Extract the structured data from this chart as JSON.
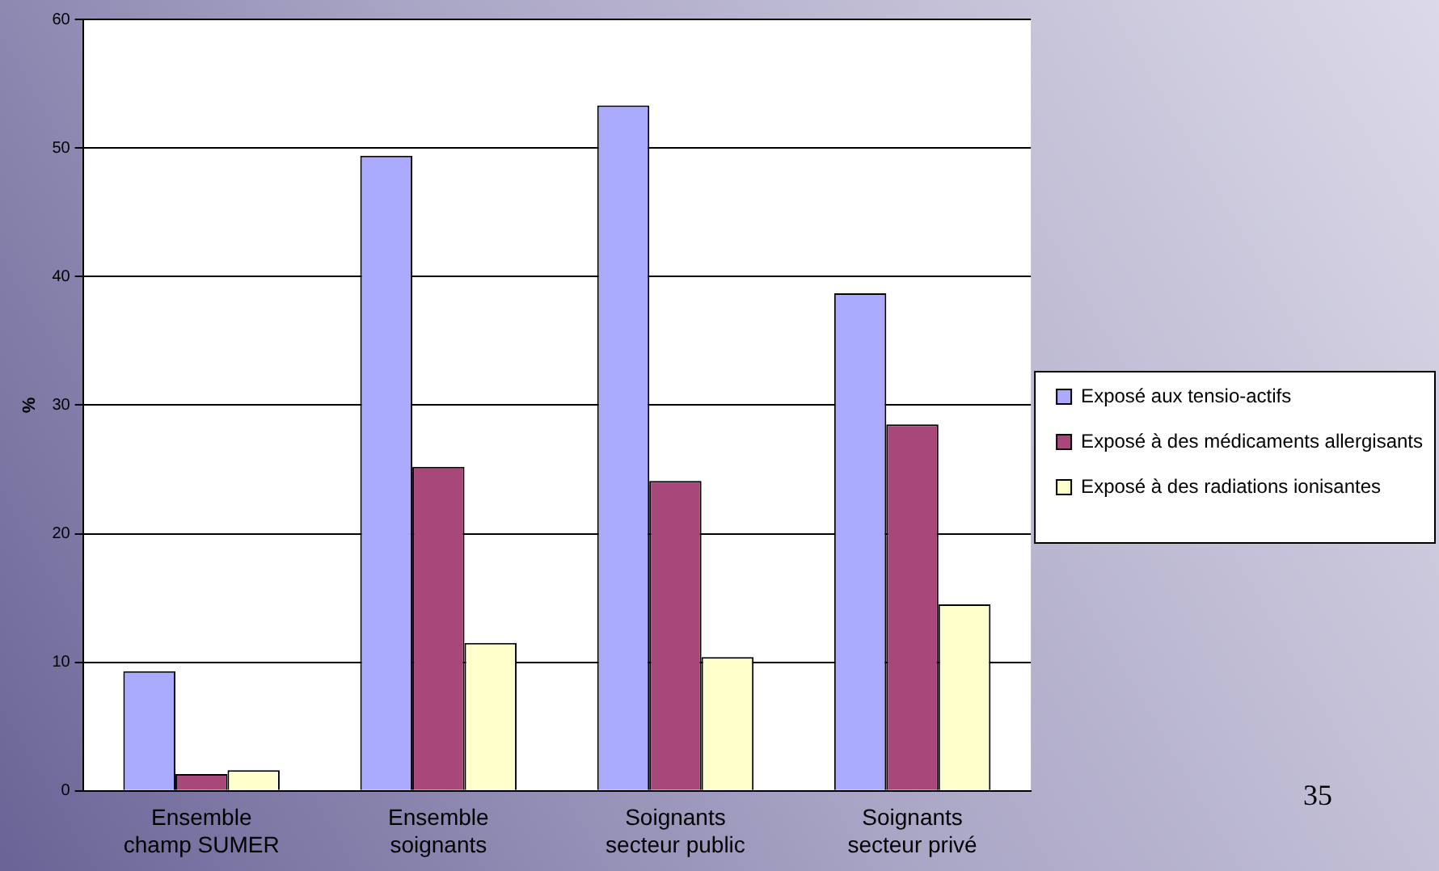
{
  "chart_data": {
    "type": "bar",
    "ylabel": "%",
    "categories": [
      "Ensemble champ SUMER",
      "Ensemble soignants",
      "Soignants secteur public",
      "Soignants secteur privé"
    ],
    "series": [
      {
        "name": "Exposé aux tensio-actifs",
        "color": "#aaaaff",
        "values": [
          9.3,
          49.4,
          53.3,
          38.7
        ]
      },
      {
        "name": "Exposé à des médicaments allergisants",
        "color": "#a8477a",
        "values": [
          1.3,
          25.2,
          24.1,
          28.5
        ]
      },
      {
        "name": "Exposé à des radiations ionisantes",
        "color": "#ffffcc",
        "values": [
          1.6,
          11.5,
          10.4,
          14.5
        ]
      }
    ],
    "ylim": [
      0,
      60
    ],
    "yticks": [
      0,
      10,
      20,
      30,
      40,
      50,
      60
    ],
    "grid": "y",
    "legend": "right",
    "annotations": [
      "35"
    ]
  }
}
